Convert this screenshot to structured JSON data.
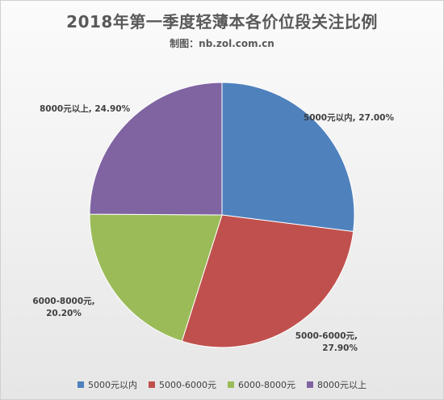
{
  "chart_data": {
    "type": "pie",
    "title": "2018年第一季度轻薄本各价位段关注比例",
    "subtitle": "制图：nb.zol.com.cn",
    "categories": [
      "5000元以内",
      "5000-6000元",
      "6000-8000元",
      "8000元以上"
    ],
    "values": [
      27.0,
      27.9,
      20.2,
      24.9
    ],
    "colors": [
      "#4F81BD",
      "#C0504D",
      "#9BBB59",
      "#8064A2"
    ],
    "data_labels": [
      [
        "5000元以内, 27.00%"
      ],
      [
        "5000-6000元,",
        "27.90%"
      ],
      [
        "6000-8000元,",
        "20.20%"
      ],
      [
        "8000元以上, 24.90%"
      ]
    ],
    "start": "12 o'clock",
    "direction": "clockwise",
    "legend_position": "bottom"
  }
}
